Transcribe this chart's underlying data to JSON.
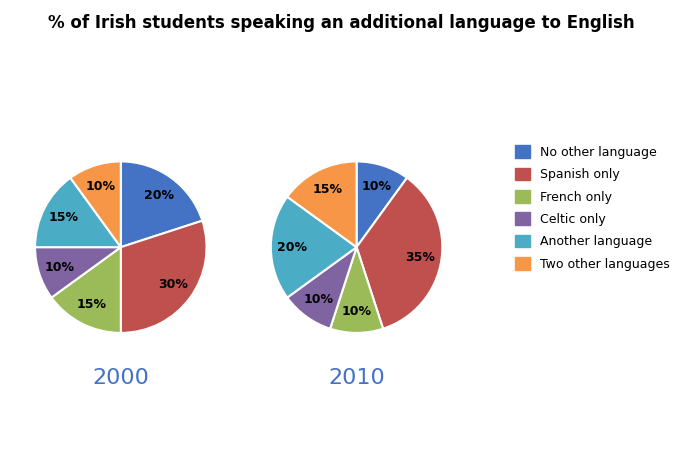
{
  "title": "% of Irish students speaking an additional language to English",
  "categories": [
    "No other language",
    "Spanish only",
    "French only",
    "Celtic only",
    "Another language",
    "Two other languages"
  ],
  "colors": [
    "#4472C4",
    "#C0504D",
    "#9BBB59",
    "#8064A2",
    "#4BACC6",
    "#F79646"
  ],
  "data_2000": [
    20,
    30,
    15,
    10,
    15,
    10
  ],
  "data_2010": [
    10,
    35,
    10,
    10,
    20,
    15
  ],
  "label_2000": "2000",
  "label_2010": "2010",
  "startangle_2000": 90,
  "startangle_2010": 90
}
